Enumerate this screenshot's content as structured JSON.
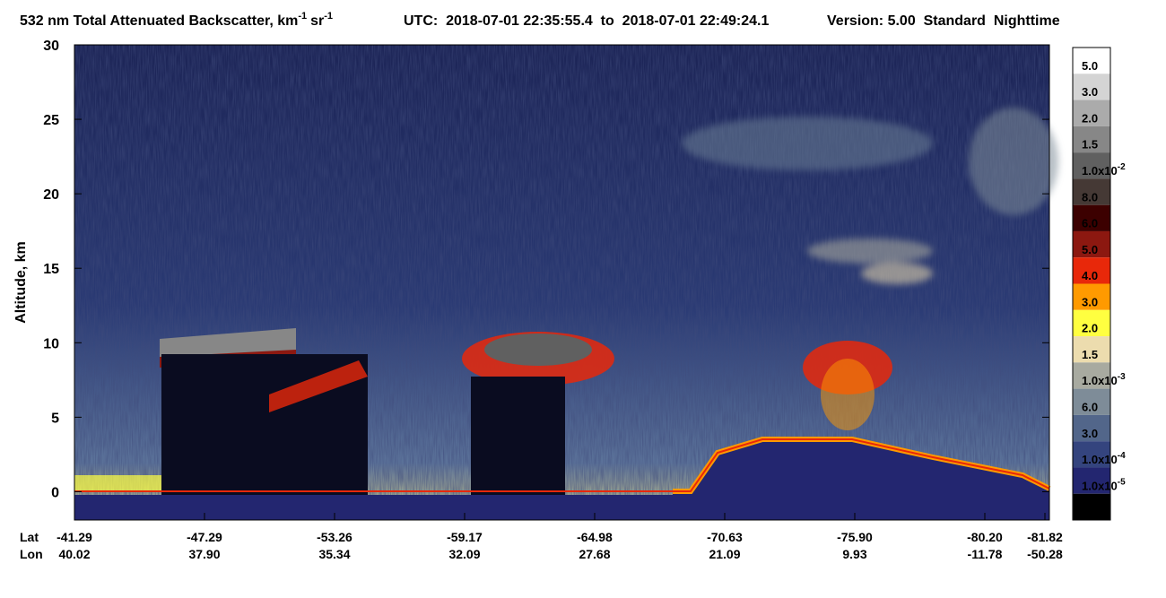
{
  "chart_data": {
    "type": "lidar-curtain",
    "title": {
      "text": "532 nm Total Attenuated Backscatter, km",
      "sup1": "-1",
      "unit": "sr",
      "sup2": "-1"
    },
    "utc": "UTC:  2018-07-01 22:35:55.4  to  2018-07-01 22:49:24.1",
    "version": "Version: 5.00  Standard  Nighttime",
    "ylabel": "Altitude, km",
    "ylim": [
      -1.9,
      30
    ],
    "yticks": [
      0,
      5,
      10,
      15,
      20,
      25,
      30
    ],
    "lat_label": "Lat",
    "lon_label": "Lon",
    "lat": [
      "-41.29",
      "-47.29",
      "-53.26",
      "-59.17",
      "-64.98",
      "-70.63",
      "-75.90",
      "-80.20",
      "-81.82"
    ],
    "lon": [
      "40.02",
      "37.90",
      "35.34",
      "32.09",
      "27.68",
      "21.09",
      "9.93",
      "-11.78",
      "-50.28"
    ],
    "colorbar": [
      {
        "text": "5.0",
        "color": "#ffffff"
      },
      {
        "text": "3.0",
        "color": "#d4d4d4"
      },
      {
        "text": "2.0",
        "color": "#ababab"
      },
      {
        "text": "1.5",
        "color": "#878787"
      },
      {
        "text": "1.0x10",
        "sup": "-2",
        "color": "#606060"
      },
      {
        "text": "8.0",
        "color": "#453935"
      },
      {
        "text": "6.0",
        "color": "#3c0000"
      },
      {
        "text": "5.0",
        "color": "#8c1810"
      },
      {
        "text": "4.0",
        "color": "#e8280a"
      },
      {
        "text": "3.0",
        "color": "#ff9a00"
      },
      {
        "text": "2.0",
        "color": "#ffff40"
      },
      {
        "text": "1.5",
        "color": "#ecdcae"
      },
      {
        "text": "1.0x10",
        "sup": "-3",
        "color": "#a8aaa0"
      },
      {
        "text": "6.0",
        "color": "#7e8c98"
      },
      {
        "text": "3.0",
        "color": "#52668a"
      },
      {
        "text": "1.0x10",
        "sup": "-4",
        "color": "#34447e"
      },
      {
        "text": "1.0x10",
        "sup": "-5",
        "color": "#232670"
      }
    ],
    "colorbar_bottom_color": "#000000"
  }
}
